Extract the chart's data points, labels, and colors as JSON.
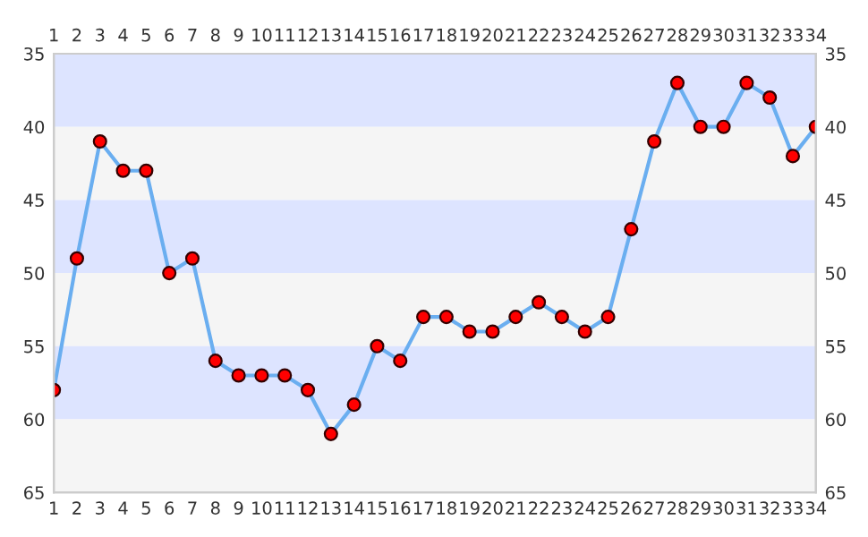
{
  "chart_data": {
    "type": "line",
    "categories": [
      "1",
      "2",
      "3",
      "4",
      "5",
      "6",
      "7",
      "8",
      "9",
      "10",
      "11",
      "12",
      "13",
      "14",
      "15",
      "16",
      "17",
      "18",
      "19",
      "20",
      "21",
      "22",
      "23",
      "24",
      "25",
      "26",
      "27",
      "28",
      "29",
      "30",
      "31",
      "32",
      "33",
      "34"
    ],
    "series": [
      {
        "color": "#6aaef0",
        "values": [
          58,
          49,
          41,
          43,
          43,
          50,
          49,
          56,
          57,
          57,
          57,
          58,
          61,
          59,
          55,
          56,
          53,
          53,
          54,
          54,
          53,
          52,
          53,
          54,
          53,
          47,
          41,
          37,
          40,
          40,
          37,
          38,
          42,
          40
        ]
      }
    ],
    "marker": "circle",
    "line_style": "solid",
    "grid": false,
    "ylim": [
      65,
      35
    ],
    "yticks": [
      35,
      40,
      45,
      50,
      55,
      60,
      65
    ],
    "y2lim": [
      65,
      35
    ],
    "y2ticks": [
      35,
      40,
      45,
      50,
      55,
      60,
      65
    ],
    "bands": [
      {
        "axis": "y",
        "from": 35,
        "to": 40,
        "color": "#dde4ff"
      },
      {
        "axis": "y",
        "from": 40,
        "to": 45,
        "color": "#f5f5f5"
      },
      {
        "axis": "y",
        "from": 45,
        "to": 50,
        "color": "#dde4ff"
      },
      {
        "axis": "y",
        "from": 50,
        "to": 55,
        "color": "#f5f5f5"
      },
      {
        "axis": "y",
        "from": 55,
        "to": 60,
        "color": "#dde4ff"
      },
      {
        "axis": "y",
        "from": 60,
        "to": 65,
        "color": "#f5f5f5"
      }
    ]
  }
}
